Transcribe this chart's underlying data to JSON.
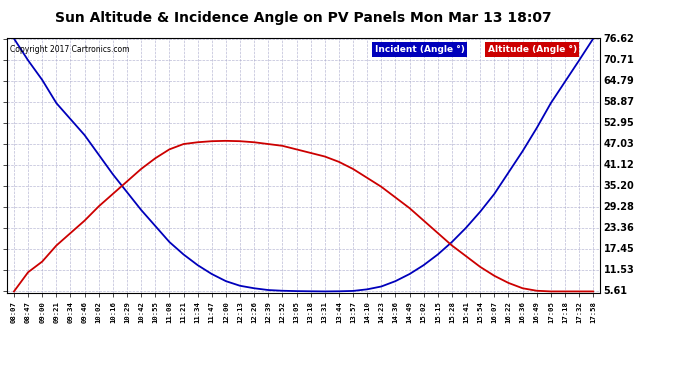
{
  "title": "Sun Altitude & Incidence Angle on PV Panels Mon Mar 13 18:07",
  "copyright": "Copyright 2017 Cartronics.com",
  "legend_incident": "Incident (Angle °)",
  "legend_altitude": "Altitude (Angle °)",
  "incident_color": "#0000bb",
  "altitude_color": "#cc0000",
  "background_color": "#ffffff",
  "grid_color": "#aaaacc",
  "yticks": [
    5.61,
    11.53,
    17.45,
    23.36,
    29.28,
    35.2,
    41.12,
    47.03,
    52.95,
    58.87,
    64.79,
    70.71,
    76.62
  ],
  "xtick_labels": [
    "08:07",
    "08:47",
    "09:00",
    "09:21",
    "09:34",
    "09:46",
    "10:02",
    "10:16",
    "10:29",
    "10:42",
    "10:55",
    "11:08",
    "11:21",
    "11:34",
    "11:47",
    "12:00",
    "12:13",
    "12:26",
    "12:39",
    "12:52",
    "13:05",
    "13:18",
    "13:31",
    "13:44",
    "13:57",
    "14:10",
    "14:23",
    "14:36",
    "14:49",
    "15:02",
    "15:15",
    "15:28",
    "15:41",
    "15:54",
    "16:07",
    "16:22",
    "16:36",
    "16:49",
    "17:05",
    "17:18",
    "17:32",
    "17:58"
  ],
  "incident_values": [
    76.62,
    70.5,
    65.0,
    58.5,
    54.0,
    49.5,
    44.0,
    38.5,
    33.5,
    28.5,
    24.0,
    19.5,
    16.0,
    13.0,
    10.5,
    8.5,
    7.2,
    6.5,
    6.0,
    5.8,
    5.7,
    5.65,
    5.61,
    5.65,
    5.75,
    6.2,
    7.0,
    8.5,
    10.5,
    13.0,
    16.0,
    19.5,
    23.5,
    28.0,
    33.0,
    39.0,
    45.0,
    51.5,
    58.5,
    64.5,
    70.5,
    76.62
  ],
  "altitude_values": [
    5.61,
    11.0,
    14.0,
    18.5,
    22.0,
    25.5,
    29.5,
    33.0,
    36.5,
    40.0,
    43.0,
    45.5,
    47.0,
    47.5,
    47.8,
    47.9,
    47.8,
    47.5,
    47.0,
    46.5,
    45.5,
    44.5,
    43.5,
    42.0,
    40.0,
    37.5,
    35.0,
    32.0,
    29.0,
    25.5,
    22.0,
    18.5,
    15.5,
    12.5,
    10.0,
    8.0,
    6.5,
    5.8,
    5.61,
    5.61,
    5.61,
    5.61
  ],
  "figsize": [
    6.9,
    3.75
  ],
  "dpi": 100
}
